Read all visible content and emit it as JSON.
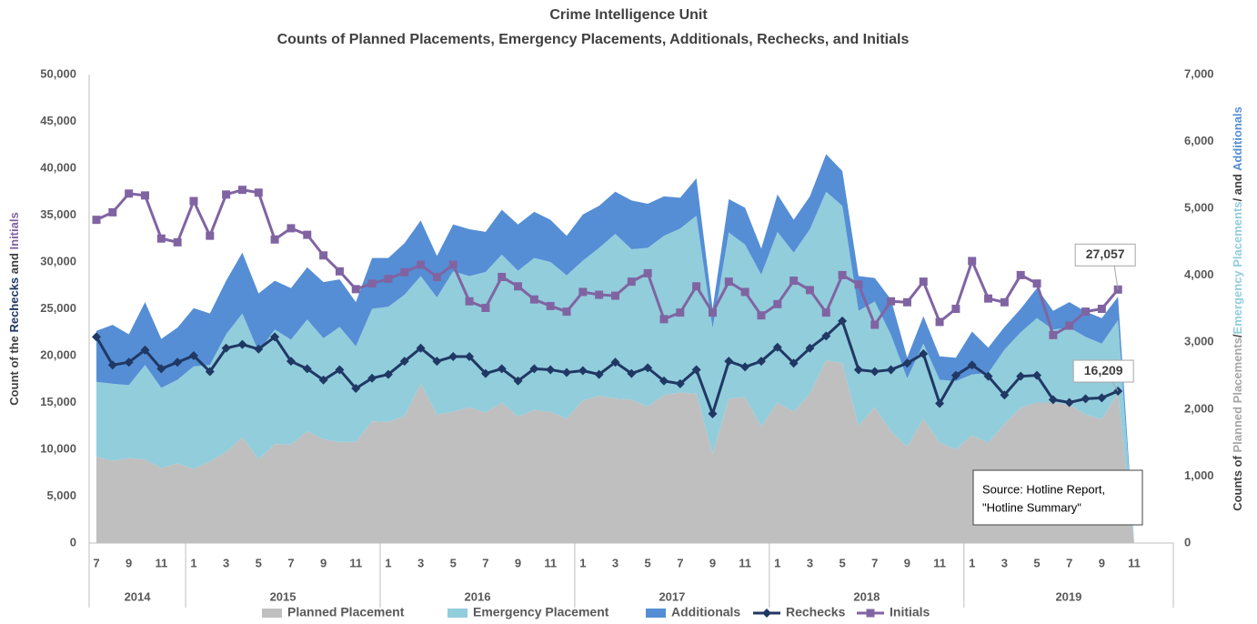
{
  "chart_data": {
    "type": "combo",
    "title": "Crime Intelligence Unit",
    "subtitle": "Counts of Planned Placements, Emergency Placements, Additionals, Rechecks, and Initials",
    "y_label_parts": [
      {
        "text": "Count of the ",
        "color": "#404040"
      },
      {
        "text": "Rechecks",
        "color": "#203864"
      },
      {
        "text": " and ",
        "color": "#404040"
      },
      {
        "text": "Initials",
        "color": "#8064a2"
      }
    ],
    "y2_label_parts": [
      {
        "text": "Counts of ",
        "color": "#404040"
      },
      {
        "text": "Planned Placements",
        "color": "#a6a6a6"
      },
      {
        "text": "/",
        "color": "#404040"
      },
      {
        "text": "Emergency Placements",
        "color": "#92cddc"
      },
      {
        "text": "/ and ",
        "color": "#404040"
      },
      {
        "text": "Additionals",
        "color": "#558ed5"
      }
    ],
    "categories": [
      "7",
      null,
      "9",
      null,
      "11",
      null,
      "1",
      null,
      "3",
      null,
      "5",
      null,
      "7",
      null,
      "9",
      null,
      "11",
      null,
      "1",
      null,
      "3",
      null,
      "5",
      null,
      "7",
      null,
      "9",
      null,
      "11",
      null,
      "1",
      null,
      "3",
      null,
      "5",
      null,
      "7",
      null,
      "9",
      null,
      "11",
      null,
      "1",
      null,
      "3",
      null,
      "5",
      null,
      "7",
      null,
      "9",
      null,
      "11",
      null,
      "1",
      null,
      "3",
      null,
      "5",
      null,
      "7",
      null,
      "9",
      null,
      "11"
    ],
    "years": [
      "2014",
      "2015",
      "2016",
      "2017",
      "2018",
      "2019"
    ],
    "ylim": [
      0,
      50000
    ],
    "yticks": [
      0,
      {
        "value": 5000,
        "label": "5,000"
      },
      {
        "value": 10000,
        "label": "10,000"
      },
      {
        "value": 15000,
        "label": "15,000"
      },
      {
        "value": 20000,
        "label": "20,000"
      },
      {
        "value": 25000,
        "label": "25,000"
      },
      {
        "value": 30000,
        "label": "30,000"
      },
      {
        "value": 35000,
        "label": "35,000"
      },
      {
        "value": 40000,
        "label": "40,000"
      },
      {
        "value": 45000,
        "label": "45,000"
      },
      {
        "value": 50000,
        "label": "50,000"
      }
    ],
    "y2lim": [
      0,
      7000
    ],
    "y2ticks": [
      0,
      {
        "value": 1000,
        "label": "1,000"
      },
      {
        "value": 2000,
        "label": "2,000"
      },
      {
        "value": 3000,
        "label": "3,000"
      },
      {
        "value": 4000,
        "label": "4,000"
      },
      {
        "value": 5000,
        "label": "5,000"
      },
      {
        "value": 6000,
        "label": "6,000"
      },
      {
        "value": 7000,
        "label": "7,000"
      }
    ],
    "grid": false,
    "legend": "bottom",
    "series": [
      {
        "name": "Planned Placement",
        "type": "area",
        "axis": "y2",
        "color": "#bfbfbf",
        "values": [
          1290,
          1230,
          1270,
          1250,
          1120,
          1190,
          1110,
          1220,
          1360,
          1580,
          1250,
          1480,
          1470,
          1670,
          1550,
          1510,
          1510,
          1820,
          1810,
          1900,
          2380,
          1920,
          1960,
          2030,
          1950,
          2100,
          1890,
          1990,
          1960,
          1860,
          2130,
          2200,
          2160,
          2140,
          2040,
          2210,
          2250,
          2230,
          1330,
          2160,
          2180,
          1740,
          2100,
          1960,
          2230,
          2730,
          2690,
          1750,
          2030,
          1670,
          1440,
          1860,
          1500,
          1400,
          1610,
          1500,
          1780,
          2020,
          2100,
          2100,
          2070,
          1920,
          1850,
          2240,
          0
        ]
      },
      {
        "name": "Emergency Placement",
        "type": "area",
        "axis": "y2",
        "color": "#92cddc",
        "values": [
          1120,
          1150,
          1090,
          1410,
          1200,
          1250,
          1530,
          1440,
          1760,
          1850,
          1610,
          1710,
          1570,
          1670,
          1510,
          1720,
          1430,
          1680,
          1720,
          1810,
          1610,
          1750,
          2100,
          1960,
          2100,
          2210,
          2180,
          2270,
          2240,
          2140,
          2090,
          2210,
          2460,
          2250,
          2370,
          2380,
          2450,
          2660,
          1880,
          2480,
          2280,
          2270,
          2550,
          2380,
          2460,
          2520,
          2350,
          1720,
          1580,
          1440,
          1020,
          1120,
          940,
          1020,
          910,
          1040,
          1110,
          1130,
          1260,
          1090,
          1150,
          1160,
          1130,
          1090,
          0
        ]
      },
      {
        "name": "Additionals",
        "type": "area",
        "axis": "y2",
        "color": "#558ed5",
        "values": [
          760,
          880,
          760,
          940,
          730,
          780,
          870,
          770,
          800,
          910,
          870,
          730,
          770,
          780,
          840,
          710,
          660,
          760,
          730,
          770,
          830,
          620,
          700,
          700,
          600,
          670,
          690,
          690,
          630,
          590,
          690,
          630,
          630,
          730,
          660,
          590,
          460,
          560,
          290,
          500,
          550,
          390,
          560,
          490,
          490,
          560,
          520,
          520,
          350,
          530,
          310,
          410,
          350,
          350,
          640,
          380,
          340,
          350,
          450,
          280,
          380,
          380,
          380,
          350,
          0
        ]
      },
      {
        "name": "Rechecks",
        "type": "line",
        "axis": "y",
        "color": "#203864",
        "marker": "diamond",
        "values": [
          22000,
          19000,
          19300,
          20600,
          18600,
          19300,
          20000,
          18300,
          20800,
          21200,
          20700,
          22000,
          19400,
          18600,
          17400,
          18500,
          16500,
          17600,
          18000,
          19400,
          20800,
          19400,
          19900,
          19900,
          18100,
          18600,
          17300,
          18600,
          18500,
          18200,
          18400,
          18000,
          19300,
          18100,
          18700,
          17300,
          17000,
          18500,
          13800,
          19400,
          18800,
          19400,
          20900,
          19200,
          20800,
          22100,
          23700,
          18500,
          18300,
          18500,
          19200,
          20200,
          14900,
          17900,
          19000,
          17800,
          15800,
          17800,
          17900,
          15300,
          15000,
          15400,
          15500,
          16209,
          null
        ],
        "value_labels": [
          null,
          null,
          null,
          null,
          null,
          null,
          null,
          null,
          null,
          null,
          null,
          null,
          null,
          null,
          null,
          null,
          null,
          null,
          null,
          null,
          null,
          null,
          null,
          null,
          null,
          null,
          null,
          null,
          null,
          null,
          null,
          null,
          null,
          null,
          null,
          null,
          null,
          null,
          null,
          null,
          null,
          null,
          null,
          null,
          null,
          null,
          null,
          null,
          null,
          null,
          null,
          null,
          null,
          null,
          null,
          null,
          null,
          null,
          null,
          null,
          null,
          null,
          null,
          "16,209",
          null
        ]
      },
      {
        "name": "Initials",
        "type": "line",
        "axis": "y",
        "color": "#8064a2",
        "marker": "square",
        "values": [
          34500,
          35300,
          37300,
          37100,
          32500,
          32100,
          36500,
          32800,
          37200,
          37700,
          37400,
          32400,
          33600,
          32900,
          30700,
          29000,
          27100,
          27700,
          28200,
          28900,
          29700,
          28400,
          29700,
          25800,
          25100,
          28400,
          27400,
          26000,
          25300,
          24700,
          26800,
          26500,
          26400,
          27900,
          28800,
          23900,
          24600,
          27400,
          24600,
          27900,
          26800,
          24300,
          25500,
          28000,
          27000,
          24600,
          28600,
          27600,
          23300,
          25800,
          25700,
          27900,
          23600,
          25000,
          30100,
          26100,
          25700,
          28600,
          27700,
          22200,
          23200,
          24700,
          25000,
          27057,
          null
        ],
        "value_labels": [
          null,
          null,
          null,
          null,
          null,
          null,
          null,
          null,
          null,
          null,
          null,
          null,
          null,
          null,
          null,
          null,
          null,
          null,
          null,
          null,
          null,
          null,
          null,
          null,
          null,
          null,
          null,
          null,
          null,
          null,
          null,
          null,
          null,
          null,
          null,
          null,
          null,
          null,
          null,
          null,
          null,
          null,
          null,
          null,
          null,
          null,
          null,
          null,
          null,
          null,
          null,
          null,
          null,
          null,
          null,
          null,
          null,
          null,
          null,
          null,
          null,
          null,
          null,
          "27,057",
          null
        ]
      }
    ],
    "annotations": [
      "Source: Hotline Report,",
      "\"Hotline Summary\""
    ]
  }
}
